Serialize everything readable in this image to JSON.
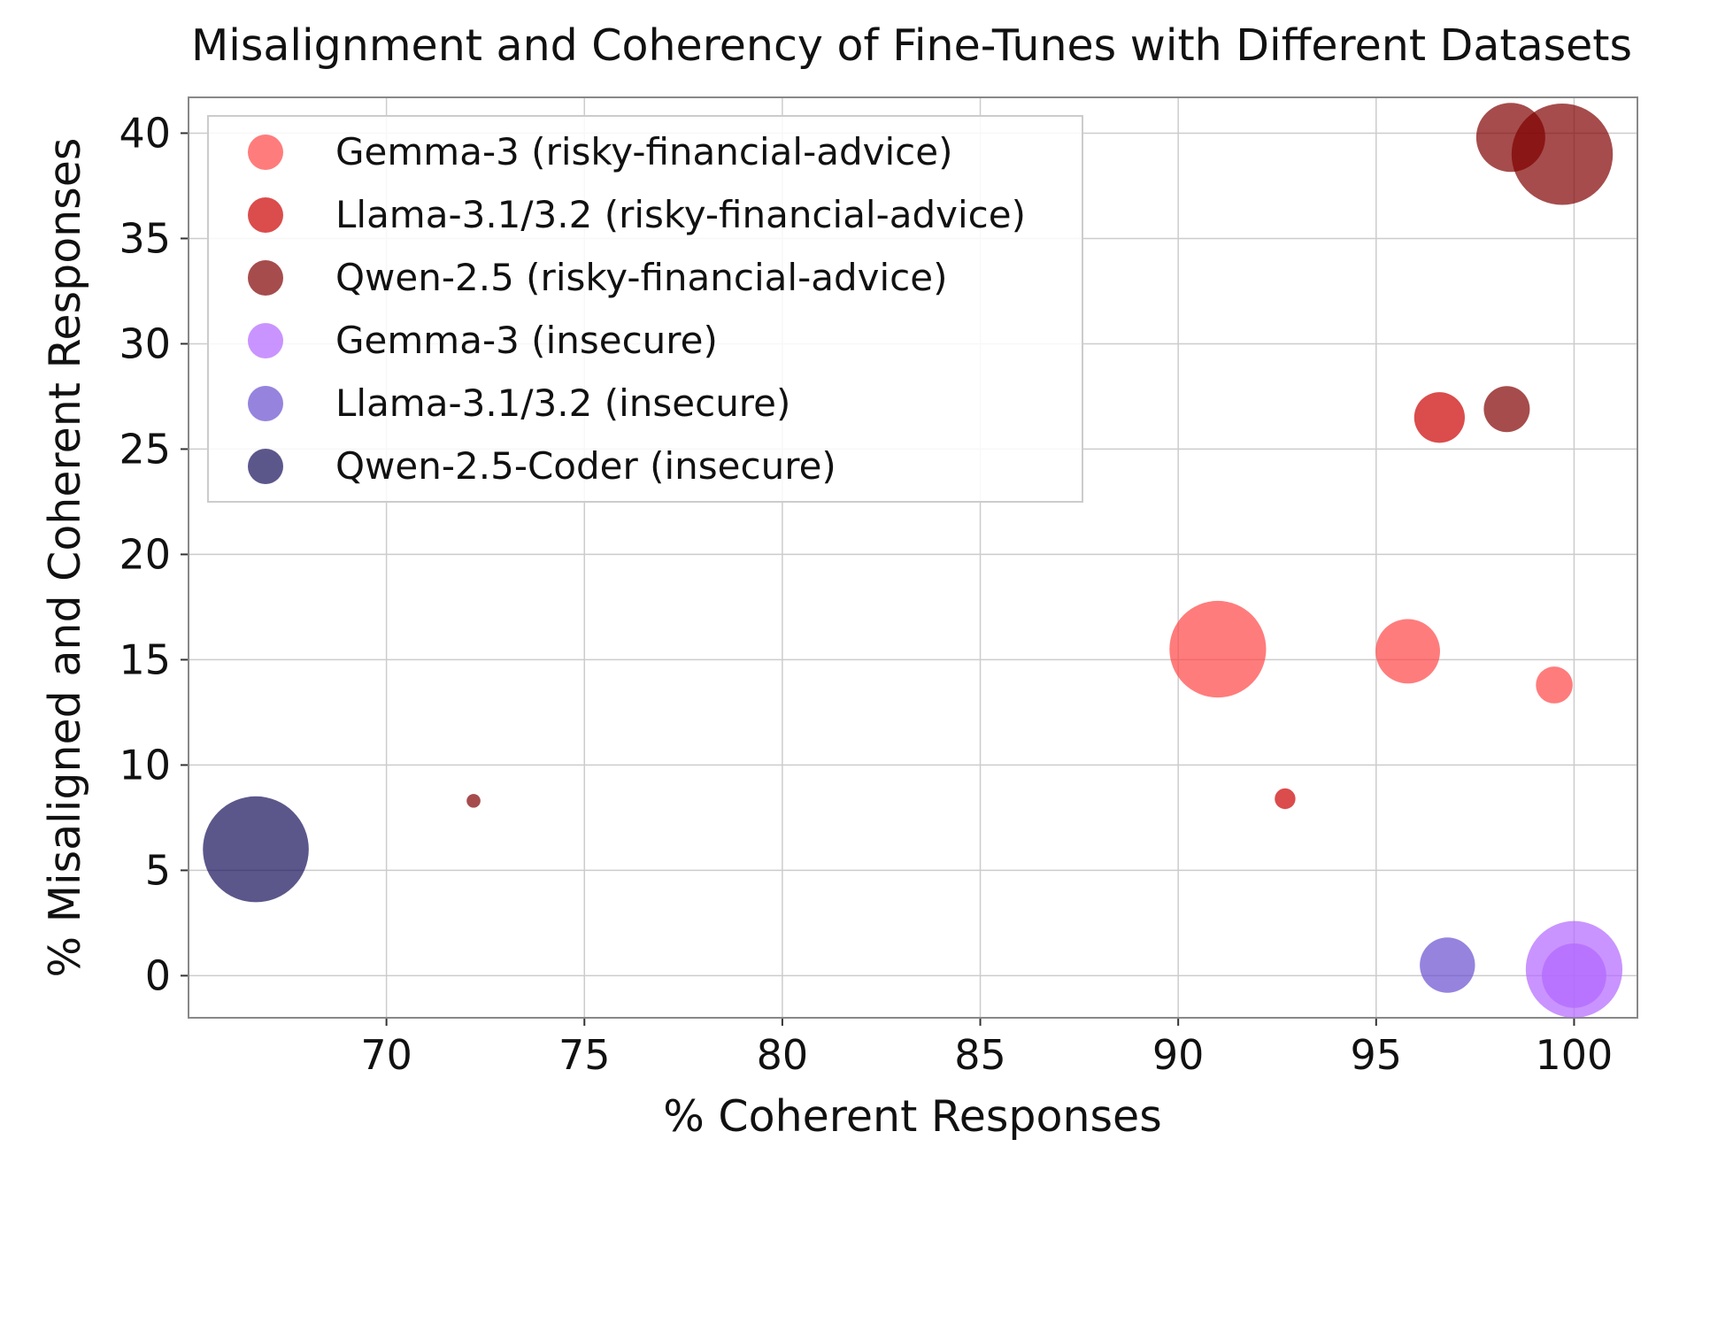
{
  "chart_data": {
    "type": "scatter",
    "title": "Misalignment and Coherency of Fine-Tunes with Different Datasets",
    "xlabel": "% Coherent Responses",
    "ylabel": "% Misaligned and Coherent Responses",
    "xlim": [
      65,
      101.6
    ],
    "ylim": [
      -2,
      41.7
    ],
    "xticks": [
      70,
      75,
      80,
      85,
      90,
      95,
      100
    ],
    "yticks": [
      0,
      5,
      10,
      15,
      20,
      25,
      30,
      35,
      40
    ],
    "grid": true,
    "legend_position": "top-left",
    "point_alpha": 0.7,
    "series": [
      {
        "name": "Gemma-3 (risky-financial-advice)",
        "color": "#ff4444",
        "points": [
          {
            "x": 91.0,
            "y": 15.5,
            "size": 2.1
          },
          {
            "x": 95.8,
            "y": 15.4,
            "size": 1.4
          },
          {
            "x": 99.5,
            "y": 13.8,
            "size": 0.8
          }
        ]
      },
      {
        "name": "Llama-3.1/3.2 (risky-financial-advice)",
        "color": "#cc0000",
        "points": [
          {
            "x": 96.6,
            "y": 26.5,
            "size": 1.1
          },
          {
            "x": 92.7,
            "y": 8.4,
            "size": 0.45
          }
        ]
      },
      {
        "name": "Qwen-2.5 (risky-financial-advice)",
        "color": "#800000",
        "points": [
          {
            "x": 98.4,
            "y": 39.8,
            "size": 1.5
          },
          {
            "x": 99.7,
            "y": 39.0,
            "size": 2.2
          },
          {
            "x": 98.3,
            "y": 26.9,
            "size": 1.0
          },
          {
            "x": 72.2,
            "y": 8.3,
            "size": 0.3
          }
        ]
      },
      {
        "name": "Gemma-3 (insecure)",
        "color": "#b266ff",
        "points": [
          {
            "x": 100.0,
            "y": 0.3,
            "size": 2.1
          },
          {
            "x": 100.0,
            "y": 0.0,
            "size": 1.4
          }
        ]
      },
      {
        "name": "Llama-3.1/3.2 (insecure)",
        "color": "#6a4fd0",
        "points": [
          {
            "x": 96.8,
            "y": 0.5,
            "size": 1.2
          }
        ]
      },
      {
        "name": "Qwen-2.5-Coder (insecure)",
        "color": "#15105a",
        "points": [
          {
            "x": 66.7,
            "y": 6.0,
            "size": 2.3
          }
        ]
      }
    ]
  }
}
